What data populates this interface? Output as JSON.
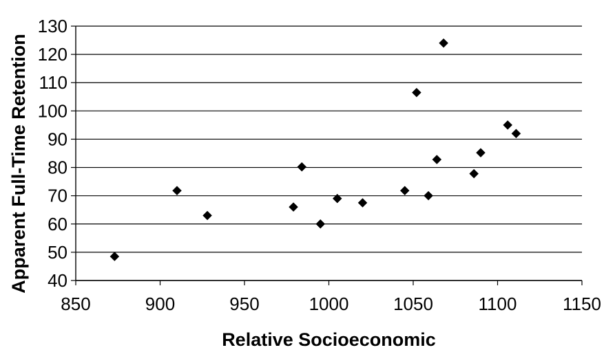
{
  "chart_data": {
    "type": "scatter",
    "title": "",
    "xlabel": "Relative Socioeconomic",
    "ylabel": "Apparent Full-Time Retention",
    "xlim": [
      850,
      1150
    ],
    "ylim": [
      40,
      130
    ],
    "x_ticks": [
      850,
      900,
      950,
      1000,
      1050,
      1100,
      1150
    ],
    "y_ticks": [
      40,
      50,
      60,
      70,
      80,
      90,
      100,
      110,
      120,
      130
    ],
    "grid": "horizontal",
    "legend": "none",
    "marker": "diamond",
    "marker_color": "#000000",
    "points": [
      {
        "x": 873,
        "y": 48.5
      },
      {
        "x": 910,
        "y": 71.8
      },
      {
        "x": 928,
        "y": 63
      },
      {
        "x": 979,
        "y": 66
      },
      {
        "x": 984,
        "y": 80.2
      },
      {
        "x": 995,
        "y": 60
      },
      {
        "x": 1005,
        "y": 69
      },
      {
        "x": 1020,
        "y": 67.5
      },
      {
        "x": 1045,
        "y": 71.8
      },
      {
        "x": 1052,
        "y": 106.5
      },
      {
        "x": 1059,
        "y": 70
      },
      {
        "x": 1064,
        "y": 82.8
      },
      {
        "x": 1068,
        "y": 124
      },
      {
        "x": 1086,
        "y": 77.8
      },
      {
        "x": 1090,
        "y": 85.2
      },
      {
        "x": 1106,
        "y": 95
      },
      {
        "x": 1111,
        "y": 92
      }
    ]
  }
}
